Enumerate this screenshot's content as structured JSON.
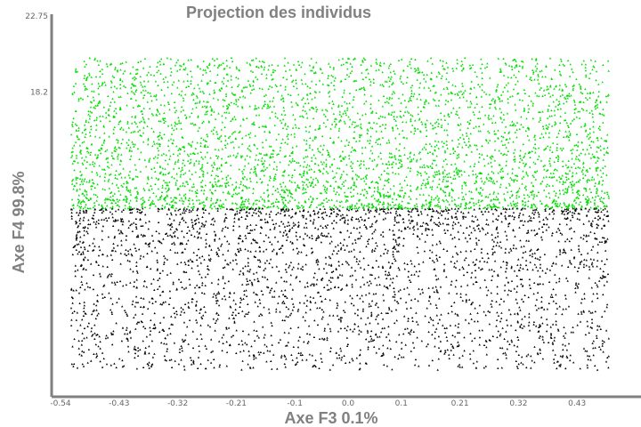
{
  "chart_data": {
    "type": "scatter",
    "title": "Projection des individus",
    "xlabel": "Axe F3 0.1%",
    "ylabel": "Axe F4 99.8%",
    "x_ticks": [
      "-0.54",
      "-0.43",
      "-0.32",
      "-0.21",
      "-0.1",
      "0.0",
      "0.1",
      "0.21",
      "0.32",
      "0.43"
    ],
    "y_ticks": [
      "22.75",
      "18.2"
    ],
    "xlim": [
      -0.54,
      0.54
    ],
    "ylim": [
      0,
      22.75
    ],
    "grid": false,
    "legend": "none",
    "series": [
      {
        "color": "#00dd00",
        "marker": "triangle",
        "x_range": [
          -0.52,
          0.49
        ],
        "y_range": [
          11.25,
          20.25
        ],
        "count": 4000,
        "distribution": "density decreasing upward from y=11.25"
      },
      {
        "color": "#000000",
        "marker": "triangle",
        "x_range": [
          -0.52,
          0.49
        ],
        "y_range": [
          1.6,
          11.25
        ],
        "count": 3000,
        "distribution": "density decreasing downward from y=11.25"
      }
    ]
  }
}
